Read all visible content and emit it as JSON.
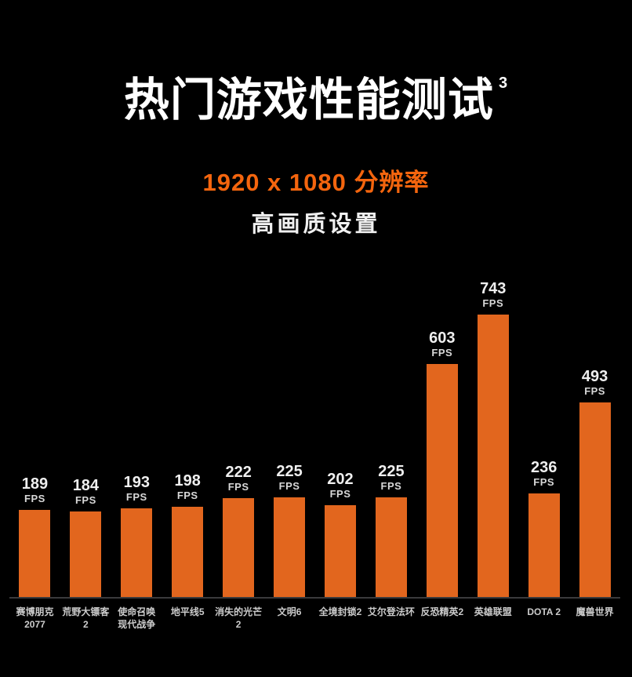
{
  "page": {
    "background": "#000000"
  },
  "header": {
    "title": "热门游戏性能测试",
    "title_superscript": "3",
    "subtitle_resolution": "1920 x 1080 分辨率",
    "subtitle_quality": "高画质设置",
    "accent_color": "#F4650E"
  },
  "chart_data": {
    "type": "bar",
    "title": "热门游戏性能测试",
    "title_superscript": "3",
    "subtitle": [
      "1920 x 1080 分辨率",
      "高画质设置"
    ],
    "unit": "FPS",
    "categories": [
      "赛博朋克 2077",
      "荒野大镖客2",
      "使命召唤 现代战争",
      "地平线5",
      "消失的光芒2",
      "文明6",
      "全境封锁2",
      "艾尔登法环",
      "反恐精英2",
      "英雄联盟",
      "DOTA 2",
      "魔兽世界"
    ],
    "category_lines": [
      [
        "赛博朋克",
        "2077"
      ],
      [
        "荒野大镖客2"
      ],
      [
        "使命召唤",
        "现代战争"
      ],
      [
        "地平线5"
      ],
      [
        "消失的光芒2"
      ],
      [
        "文明6"
      ],
      [
        "全境封锁2"
      ],
      [
        "艾尔登法环"
      ],
      [
        "反恐精英2"
      ],
      [
        "英雄联盟"
      ],
      [
        "DOTA 2"
      ],
      [
        "魔兽世界"
      ]
    ],
    "values": [
      189,
      184,
      193,
      198,
      222,
      225,
      202,
      225,
      603,
      743,
      236,
      493
    ],
    "bar_color": "#E2661E",
    "value_labels_shown": true,
    "legend": "none",
    "axes": "none",
    "grid": false,
    "ylim": [
      0,
      800
    ],
    "background": "#000000"
  }
}
